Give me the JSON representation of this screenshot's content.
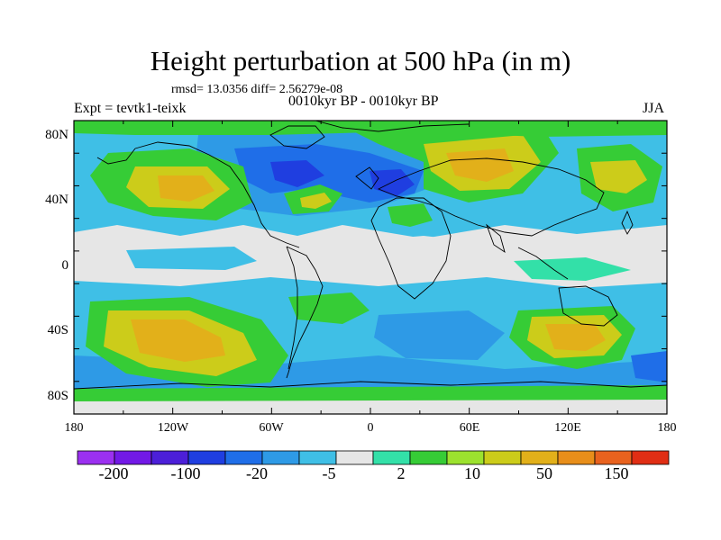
{
  "header": {
    "title": "Height perturbation at 500 hPa (in m)",
    "stats": "rmsd= 13.0356 diff= 2.56279e-08",
    "experiment": "Expt = tevtk1-teixk",
    "period": "0010kyr BP - 0010kyr BP",
    "season": "JJA"
  },
  "axes": {
    "x_ticks": [
      "180",
      "120W",
      "60W",
      "0",
      "60E",
      "120E",
      "180"
    ],
    "y_ticks": [
      "80N",
      "40N",
      "0",
      "40S",
      "80S"
    ]
  },
  "colorbar": {
    "colors": [
      "#9b30f0",
      "#7219e6",
      "#4c1fd8",
      "#1f3ee0",
      "#1f6ee8",
      "#2e9ae6",
      "#3fbfe6",
      "#e6e6e6",
      "#33e0a8",
      "#36cc36",
      "#9ce22e",
      "#cccc1a",
      "#e2b01a",
      "#e88e1a",
      "#e8621e",
      "#e02e14"
    ],
    "labels": [
      "-200",
      "-100",
      "-20",
      "-5",
      "2",
      "10",
      "50",
      "150"
    ]
  },
  "map": {
    "projection": "cylindrical-equidistant",
    "lon_range": [
      -180,
      180
    ],
    "lat_range": [
      -90,
      90
    ],
    "background_color": "#e6e6e6",
    "fields": [
      {
        "name": "north-pacific-high",
        "level": "50",
        "color": "#e2b01a"
      },
      {
        "name": "north-atlantic-low",
        "level": "-20",
        "color": "#1f3ee0"
      },
      {
        "name": "eurasia-high",
        "level": "50",
        "color": "#e2b01a"
      },
      {
        "name": "south-pacific-high",
        "level": "50",
        "color": "#e2b01a"
      },
      {
        "name": "south-indian-high",
        "level": "50",
        "color": "#e2b01a"
      },
      {
        "name": "southern-ocean-low",
        "level": "-5",
        "color": "#2e9ae6"
      }
    ]
  }
}
